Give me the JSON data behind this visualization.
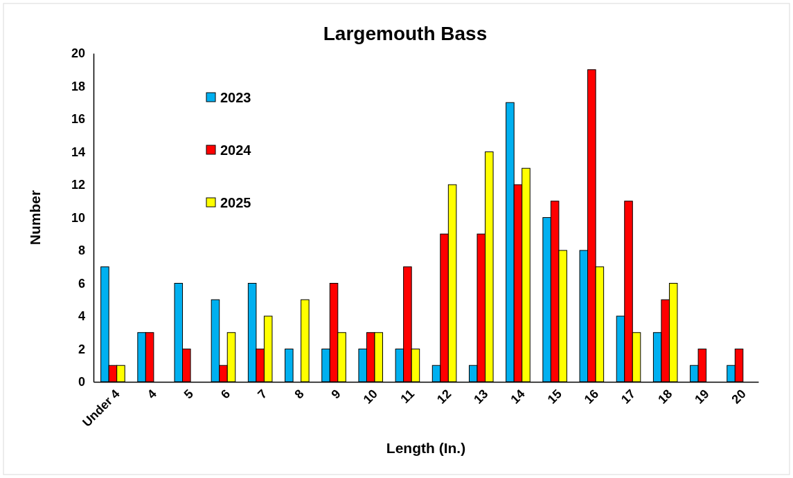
{
  "chart_data": {
    "type": "bar",
    "title": "Largemouth Bass",
    "xlabel": "Length (In.)",
    "ylabel": "Number",
    "categories": [
      "Under 4",
      "4",
      "5",
      "6",
      "7",
      "8",
      "9",
      "10",
      "11",
      "12",
      "13",
      "14",
      "15",
      "16",
      "17",
      "18",
      "19",
      "20"
    ],
    "series": [
      {
        "name": "2023",
        "color": "#00b0f0",
        "values": [
          7,
          3,
          6,
          5,
          6,
          2,
          2,
          2,
          2,
          1,
          1,
          17,
          10,
          8,
          4,
          3,
          1,
          1
        ]
      },
      {
        "name": "2024",
        "color": "#ff0000",
        "values": [
          1,
          3,
          2,
          1,
          2,
          0,
          6,
          3,
          7,
          9,
          9,
          12,
          11,
          19,
          11,
          5,
          2,
          2
        ]
      },
      {
        "name": "2025",
        "color": "#ffff00",
        "values": [
          1,
          0,
          0,
          3,
          4,
          5,
          3,
          3,
          2,
          12,
          14,
          13,
          8,
          7,
          3,
          6,
          0,
          0
        ]
      }
    ],
    "ylim": [
      0,
      20
    ],
    "yticks": [
      0,
      2,
      4,
      6,
      8,
      10,
      12,
      14,
      16,
      18,
      20
    ],
    "grid": false,
    "legend": "top left"
  }
}
